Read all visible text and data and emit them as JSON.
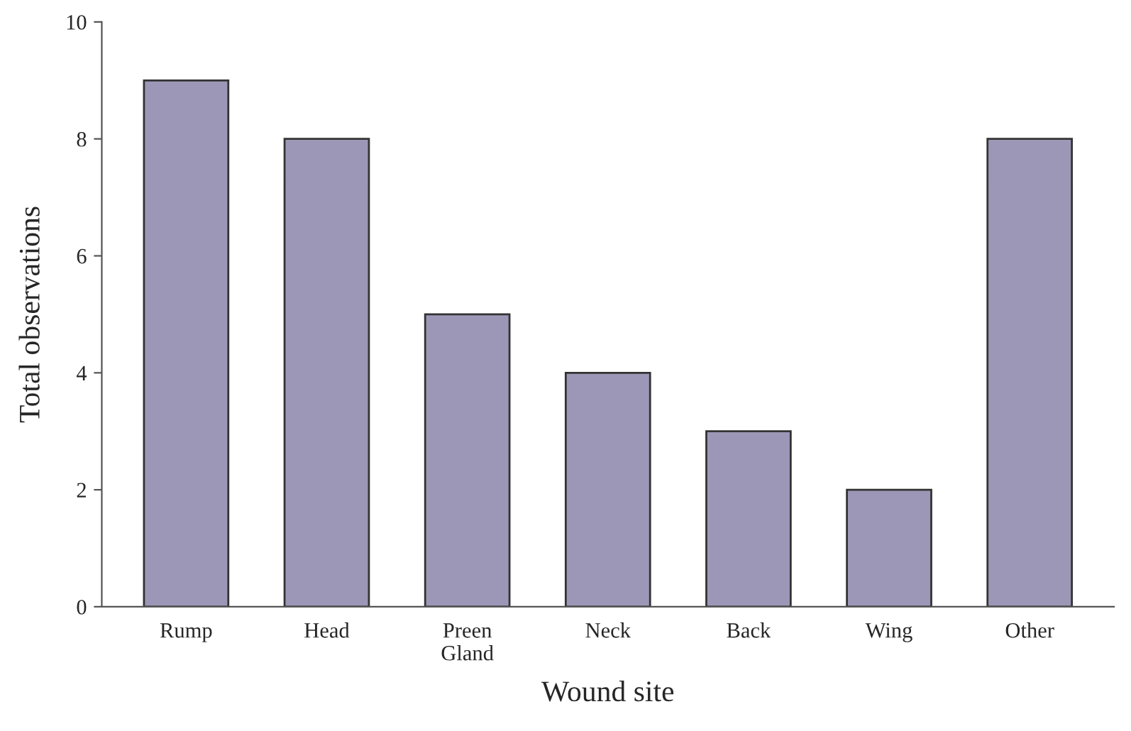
{
  "chart_data": {
    "type": "bar",
    "xlabel": "Wound site",
    "ylabel": "Total observations",
    "categories": [
      "Rump",
      "Head",
      "Preen\nGland",
      "Neck",
      "Back",
      "Wing",
      "Other"
    ],
    "values": [
      9,
      8,
      5,
      4,
      3,
      2,
      8
    ],
    "color": "#9d97b7",
    "ylim": [
      0,
      10
    ],
    "yticks": [
      0,
      2,
      4,
      6,
      8,
      10
    ],
    "grid": false,
    "legend": false
  }
}
